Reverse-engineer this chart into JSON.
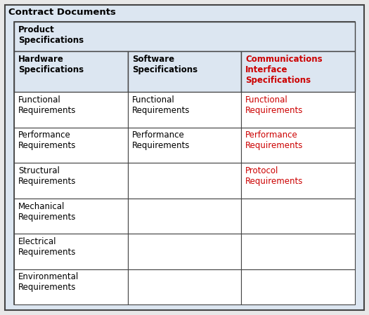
{
  "title": "Contract Documents",
  "fig_bg": "#e8e8e8",
  "outer_bg": "#dce6f1",
  "inner_bg": "#ffffff",
  "header_cell_bg": "#dce6f1",
  "data_cell_bg": "#ffffff",
  "border_color": "#444444",
  "title_fontsize": 9.5,
  "cell_fontsize": 8.5,
  "header_fontsize": 8.5,
  "black_color": "#000000",
  "red_color": "#cc0000",
  "product_spec": "Product\nSpecifications",
  "col_headers": [
    {
      "text": "Hardware\nSpecifications",
      "color": "#000000",
      "bold": true
    },
    {
      "text": "Software\nSpecifications",
      "color": "#000000",
      "bold": true
    },
    {
      "text": "Communications\nInterface\nSpecifications",
      "color": "#cc0000",
      "bold": true
    }
  ],
  "rows": [
    [
      {
        "text": "Functional\nRequirements",
        "color": "#000000"
      },
      {
        "text": "Functional\nRequirements",
        "color": "#000000"
      },
      {
        "text": "Functional\nRequirements",
        "color": "#cc0000"
      }
    ],
    [
      {
        "text": "Performance\nRequirements",
        "color": "#000000"
      },
      {
        "text": "Performance\nRequirements",
        "color": "#000000"
      },
      {
        "text": "Performance\nRequirements",
        "color": "#cc0000"
      }
    ],
    [
      {
        "text": "Structural\nRequirements",
        "color": "#000000"
      },
      {
        "text": "",
        "color": "#000000"
      },
      {
        "text": "Protocol\nRequirements",
        "color": "#cc0000"
      }
    ],
    [
      {
        "text": "Mechanical\nRequirements",
        "color": "#000000"
      },
      {
        "text": "",
        "color": "#000000"
      },
      {
        "text": "",
        "color": "#000000"
      }
    ],
    [
      {
        "text": "Electrical\nRequirements",
        "color": "#000000"
      },
      {
        "text": "",
        "color": "#000000"
      },
      {
        "text": "",
        "color": "#000000"
      }
    ],
    [
      {
        "text": "Environmental\nRequirements",
        "color": "#000000"
      },
      {
        "text": "",
        "color": "#000000"
      },
      {
        "text": "",
        "color": "#000000"
      }
    ]
  ]
}
